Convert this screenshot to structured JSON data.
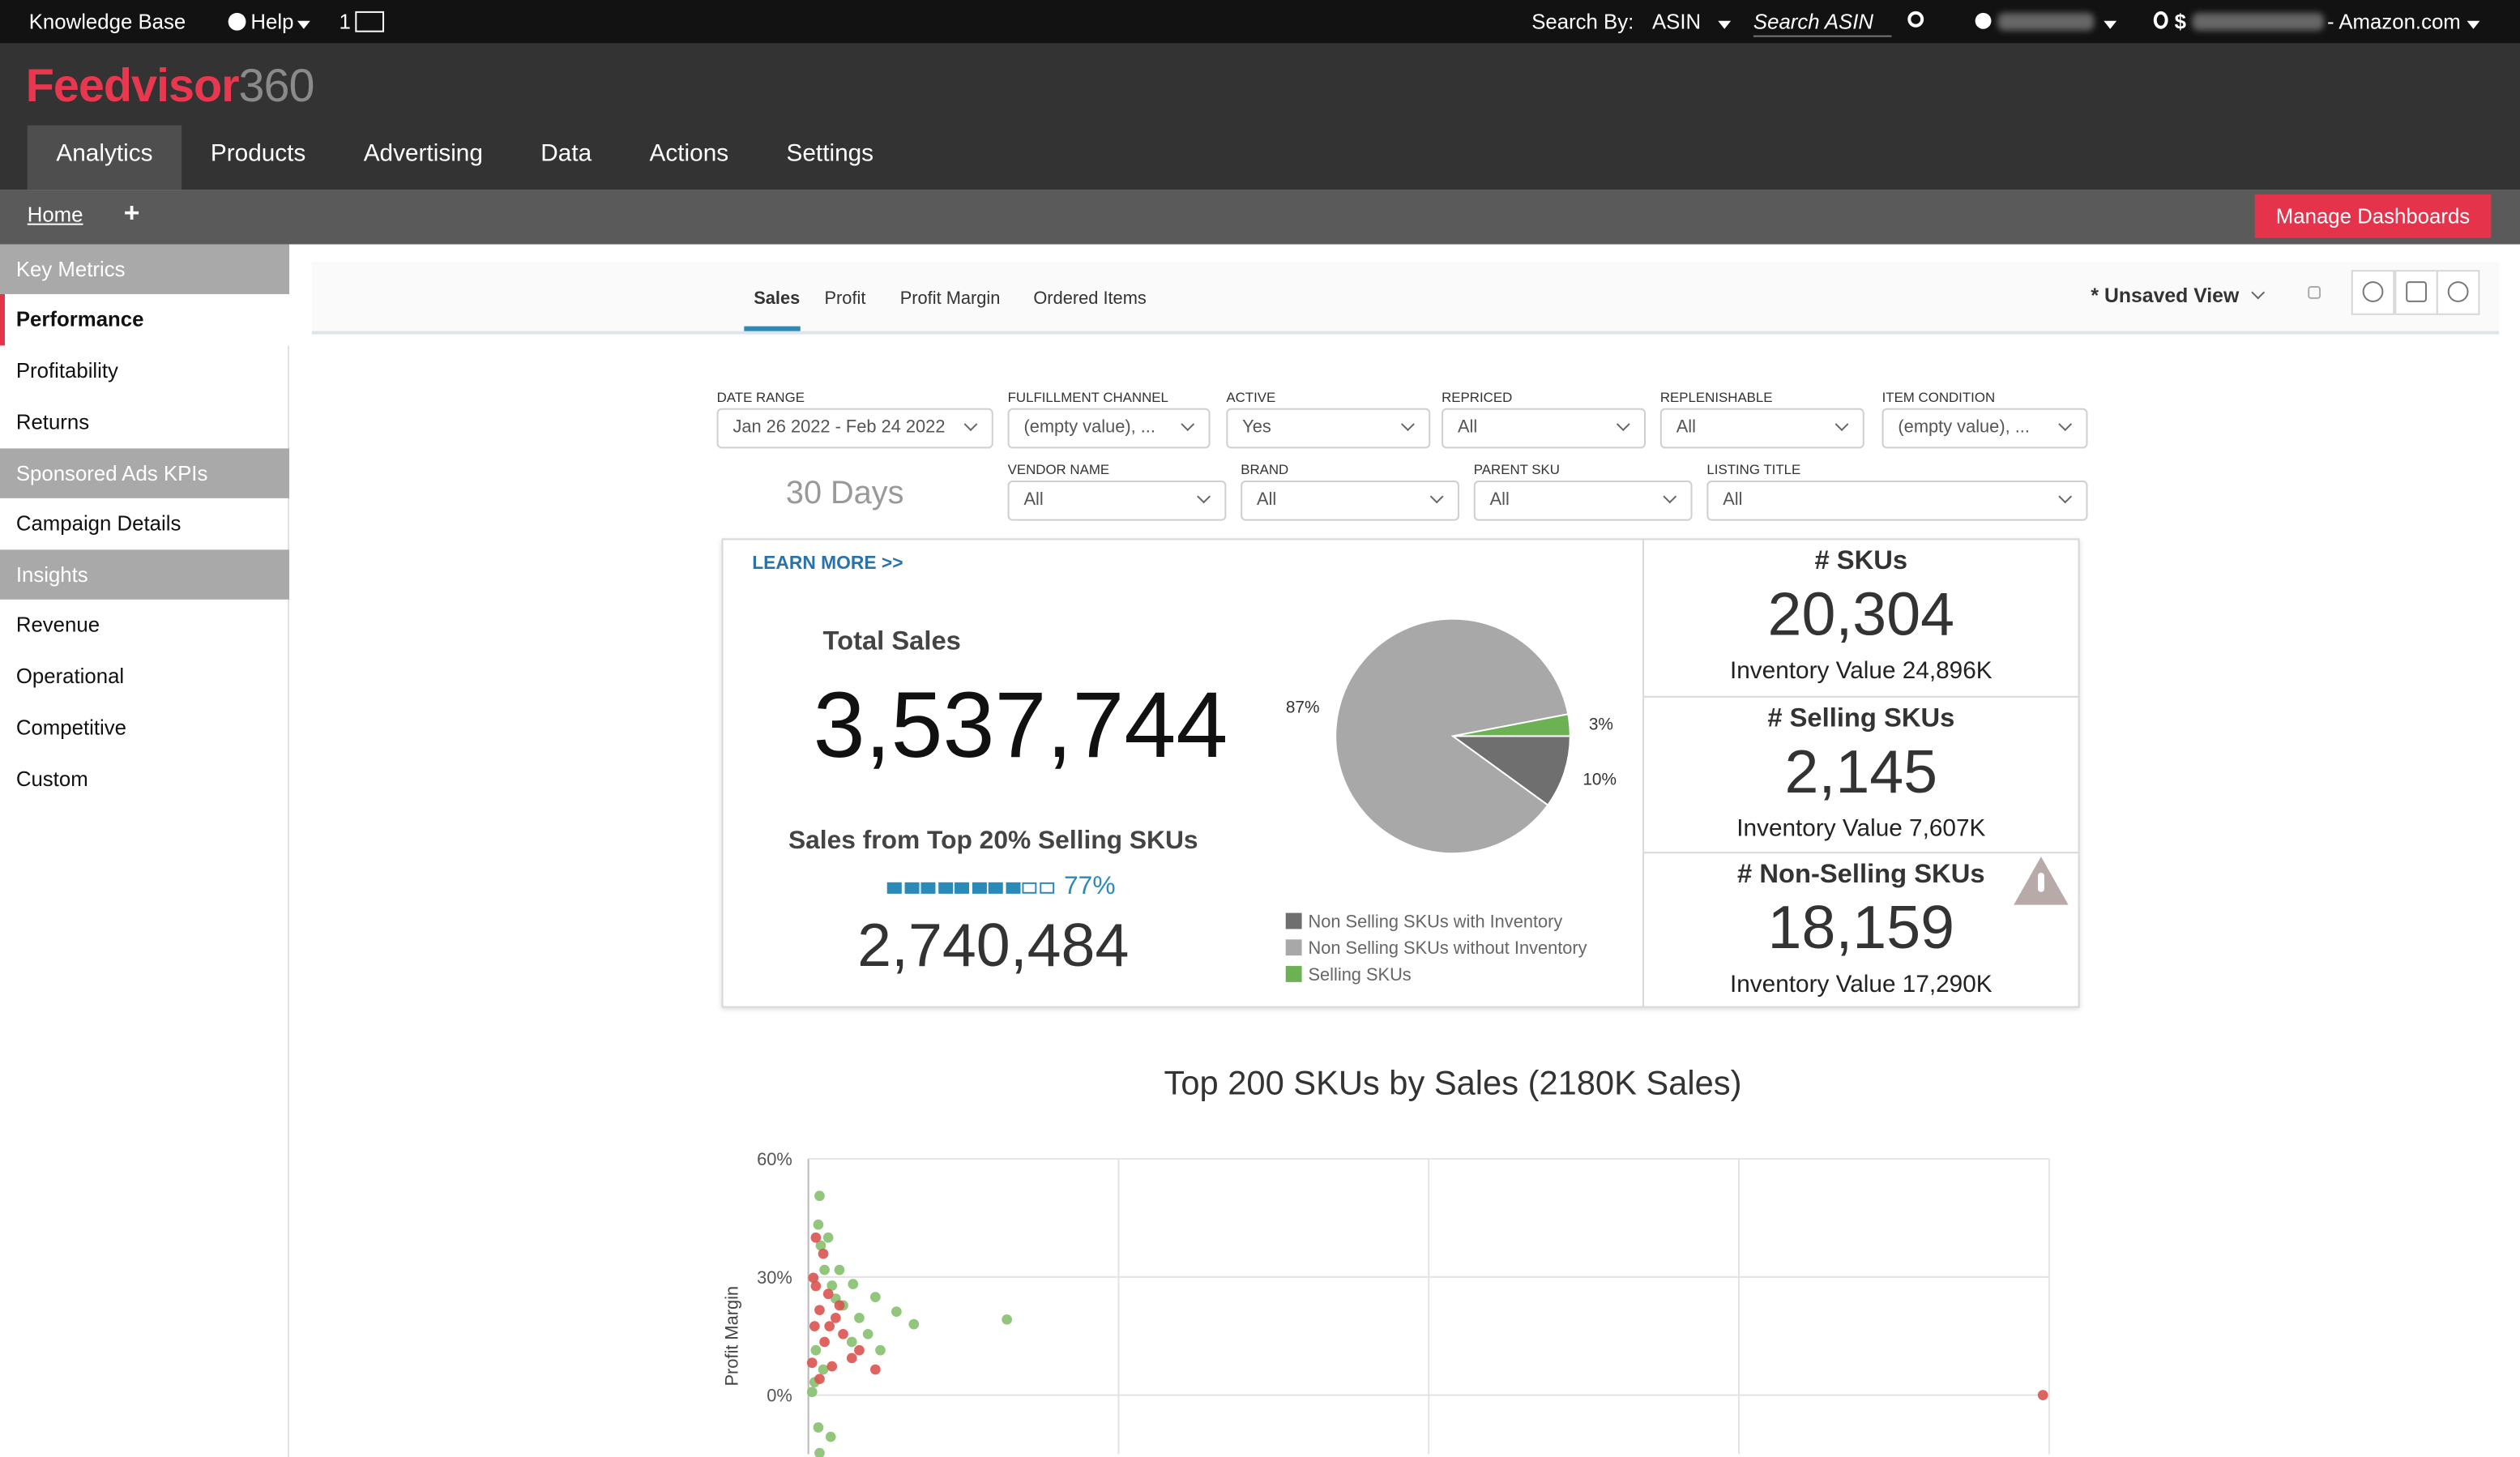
{
  "topbar": {
    "knowledge_base": "Knowledge Base",
    "help": "Help",
    "count": "1",
    "search_by": "Search By:",
    "search_field": "ASIN",
    "search_placeholder": "Search ASIN",
    "currency": "$",
    "marketplace": "- Amazon.com"
  },
  "header": {
    "logo": "Feedvisor",
    "logo_suffix": "360",
    "nav": [
      "Analytics",
      "Products",
      "Advertising",
      "Data",
      "Actions",
      "Settings"
    ],
    "active_nav": 0
  },
  "subbar": {
    "home": "Home",
    "plus": "+",
    "button": "Manage Dashboards"
  },
  "sidebar": [
    {
      "label": "Key Metrics",
      "section": true
    },
    {
      "label": "Performance",
      "active": true
    },
    {
      "label": "Profitability"
    },
    {
      "label": "Returns"
    },
    {
      "label": "Sponsored Ads KPIs",
      "section": true
    },
    {
      "label": "Campaign Details"
    },
    {
      "label": "Insights",
      "section": true
    },
    {
      "label": "Revenue"
    },
    {
      "label": "Operational"
    },
    {
      "label": "Competitive"
    },
    {
      "label": "Custom"
    }
  ],
  "tabs": {
    "items": [
      "Sales",
      "Profit",
      "Profit Margin",
      "Ordered Items"
    ],
    "active": 0,
    "view": "* Unsaved View"
  },
  "filters": [
    {
      "label": "DATE RANGE",
      "value": "Jan 26 2022 - Feb 24 2022"
    },
    {
      "label": "FULFILLMENT CHANNEL",
      "value": "(empty value), ..."
    },
    {
      "label": "ACTIVE",
      "value": "Yes"
    },
    {
      "label": "REPRICED",
      "value": "All"
    },
    {
      "label": "REPLENISHABLE",
      "value": "All"
    },
    {
      "label": "ITEM CONDITION",
      "value": "(empty value), ..."
    },
    {
      "label": "VENDOR NAME",
      "value": "All"
    },
    {
      "label": "BRAND",
      "value": "All"
    },
    {
      "label": "PARENT SKU",
      "value": "All"
    },
    {
      "label": "LISTING TITLE",
      "value": "All"
    }
  ],
  "period": "30 Days",
  "summary": {
    "learn_more": "LEARN MORE >>",
    "total_label": "Total Sales",
    "total": "3,537,744",
    "top_label": "Sales from Top 20% Selling SKUs",
    "top_share": {
      "value": 77,
      "label": "77%"
    },
    "top_value": "2,740,484"
  },
  "kpis": [
    {
      "title": "# SKUs",
      "value": "20,304",
      "sub": "Inventory Value 24,896K"
    },
    {
      "title": "# Selling SKUs",
      "value": "2,145",
      "sub": "Inventory Value 7,607K"
    },
    {
      "title": "# Non-Selling SKUs",
      "value": "18,159",
      "sub": "Inventory Value 17,290K",
      "warning": true
    }
  ],
  "chart_data": [
    {
      "type": "pie",
      "categories": [
        "Non Selling SKUs with Inventory",
        "Non Selling SKUs without Inventory",
        "Selling SKUs"
      ],
      "values": [
        10,
        87,
        3
      ],
      "value_labels": [
        "10%",
        "87%",
        "3%"
      ],
      "colors": [
        "#6f6f6f",
        "#a8a8a8",
        "#6cb153"
      ]
    },
    {
      "type": "scatter",
      "title": "Top 200 SKUs by Sales (2180K Sales)",
      "y_label": "Profit Margin",
      "xlim": [
        0,
        100
      ],
      "ylim": [
        -15,
        60
      ],
      "yticks": [
        {
          "value": 60,
          "label": "60%"
        },
        {
          "value": 30,
          "label": "30%"
        },
        {
          "value": 0,
          "label": "0%"
        }
      ],
      "grid": true,
      "series": [
        {
          "color": "#86c06f",
          "x": [
            0.9,
            0.8,
            1.0,
            1.3,
            1.9,
            2.2,
            3.6,
            5.4,
            7.1,
            8.5,
            16.0,
            4.1,
            4.8,
            2.8,
            0.6,
            1.2,
            0.5,
            0.8,
            1.8,
            0.9,
            3.5,
            1.6,
            2.5,
            5.8,
            0.3
          ],
          "values": [
            50.6,
            43.3,
            38.0,
            31.8,
            27.8,
            24.5,
            28.2,
            24.9,
            21.2,
            18.0,
            19.2,
            19.6,
            15.5,
            22.8,
            11.4,
            6.5,
            3.3,
            -8.2,
            -10.6,
            -14.7,
            13.5,
            40.0,
            31.8,
            11.4,
            0.8
          ]
        },
        {
          "color": "#d9534f",
          "x": [
            0.6,
            1.2,
            0.4,
            1.6,
            0.9,
            2.2,
            0.5,
            2.8,
            1.3,
            3.5,
            0.3,
            1.9,
            5.4,
            0.9,
            2.5,
            4.1,
            0.6,
            1.7,
            99.5
          ],
          "values": [
            40.0,
            35.9,
            29.8,
            25.7,
            21.6,
            19.6,
            17.5,
            15.5,
            13.5,
            9.4,
            8.2,
            7.3,
            6.5,
            4.1,
            22.8,
            11.4,
            27.7,
            17.5,
            0.0
          ]
        }
      ]
    }
  ]
}
